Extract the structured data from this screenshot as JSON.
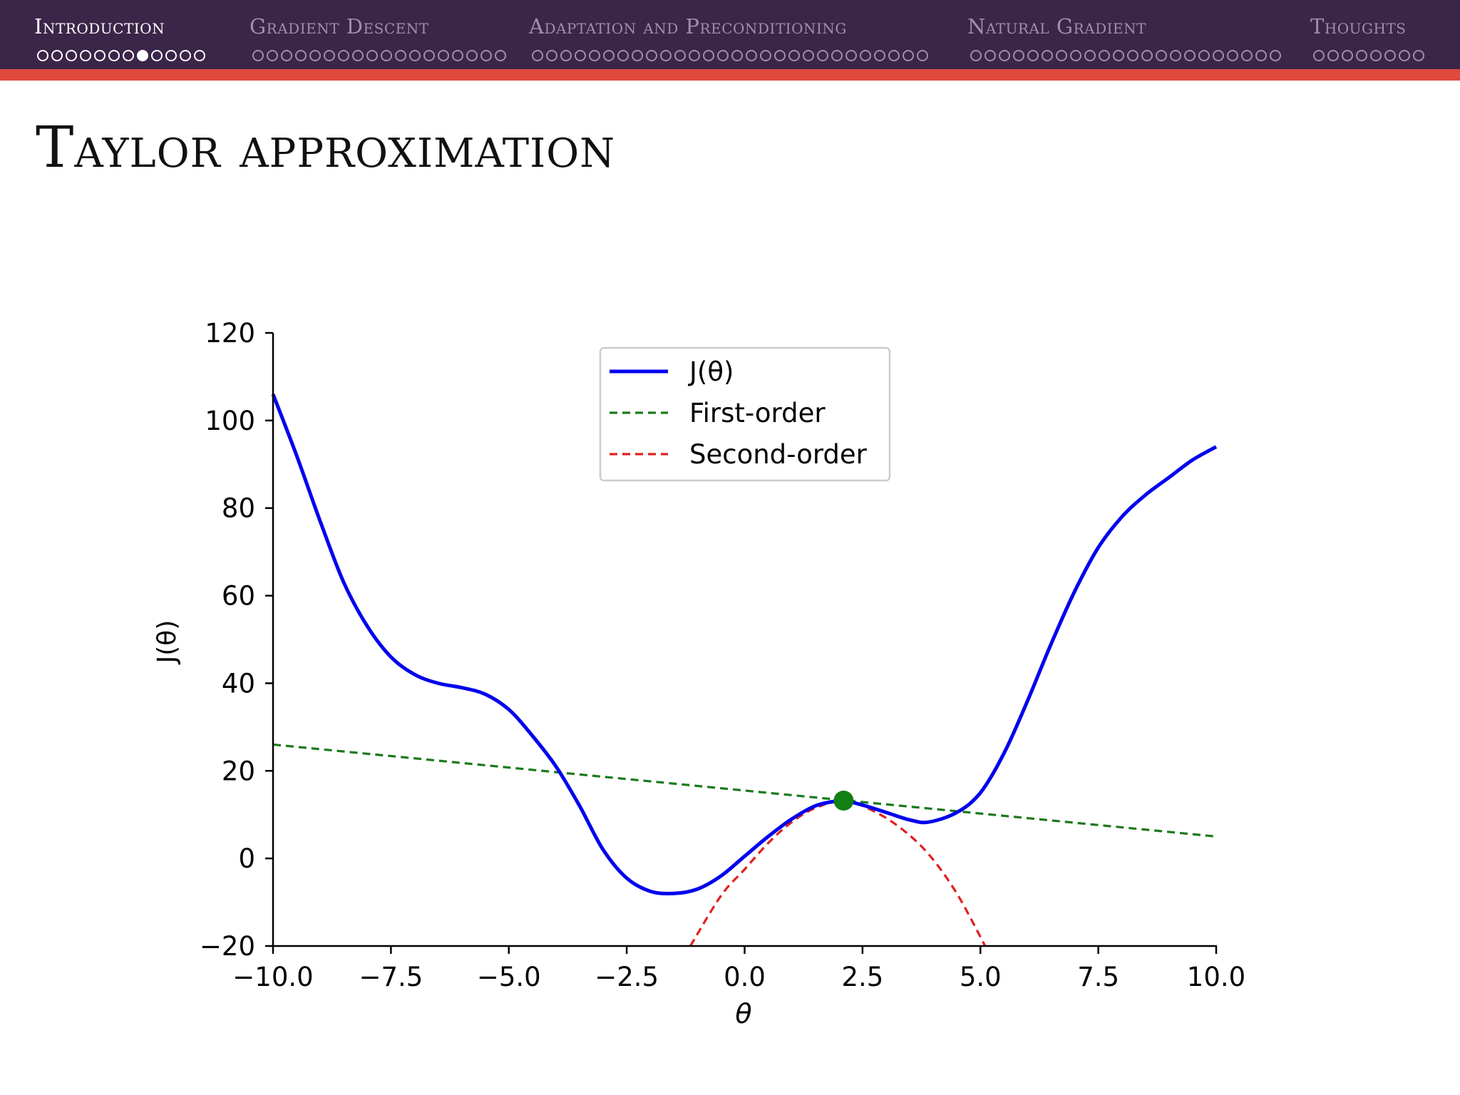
{
  "header": {
    "sections": [
      {
        "label": "Introduction",
        "dots": 12,
        "current": 7,
        "active": true
      },
      {
        "label": "Gradient Descent",
        "dots": 18,
        "current": -1,
        "active": false
      },
      {
        "label": "Adaptation and Preconditioning",
        "dots": 28,
        "current": -1,
        "active": false
      },
      {
        "label": "Natural Gradient",
        "dots": 22,
        "current": -1,
        "active": false
      },
      {
        "label": "Thoughts",
        "dots": 8,
        "current": -1,
        "active": false
      }
    ]
  },
  "slide": {
    "title": "Taylor approximation"
  },
  "colors": {
    "header_bg": "#3b2549",
    "accent_bar": "#e2493d",
    "curve": "#0000ee",
    "first_order": "#1a7a1a",
    "second_order": "#e02020",
    "point": "#138013"
  },
  "chart_data": {
    "type": "line",
    "xlabel": "θ",
    "ylabel": "J(θ)",
    "xlim": [
      -10,
      10
    ],
    "ylim": [
      -20,
      120
    ],
    "xticks": [
      "−10.0",
      "−7.5",
      "−5.0",
      "−2.5",
      "0.0",
      "2.5",
      "5.0",
      "7.5",
      "10.0"
    ],
    "xtick_values": [
      -10,
      -7.5,
      -5,
      -2.5,
      0,
      2.5,
      5,
      7.5,
      10
    ],
    "yticks": [
      "−20",
      "0",
      "20",
      "40",
      "60",
      "80",
      "100",
      "120"
    ],
    "ytick_values": [
      -20,
      0,
      20,
      40,
      60,
      80,
      100,
      120
    ],
    "grid": false,
    "legend_position": "upper-center",
    "series": [
      {
        "name": "J(θ)",
        "style": "solid",
        "x": [
          -10,
          -9.5,
          -9,
          -8.5,
          -8,
          -7.5,
          -7,
          -6.5,
          -6,
          -5.5,
          -5,
          -4.5,
          -4,
          -3.5,
          -3,
          -2.5,
          -2,
          -1.5,
          -1,
          -0.5,
          0,
          0.5,
          1,
          1.5,
          2,
          2.1,
          2.5,
          3,
          3.5,
          3.9,
          4.5,
          5,
          5.5,
          6,
          6.5,
          7,
          7.5,
          8,
          8.5,
          9,
          9.5,
          10
        ],
        "y": [
          106,
          92,
          77,
          63,
          53,
          46,
          42,
          40,
          39,
          37.5,
          34,
          28,
          21,
          12,
          2,
          -4.5,
          -7.5,
          -8,
          -7,
          -4,
          0.5,
          5,
          9,
          12,
          13.2,
          13.2,
          12.2,
          10.5,
          8.8,
          8.3,
          10.5,
          15,
          24,
          36,
          49,
          61,
          71,
          78,
          83,
          87,
          91,
          94
        ]
      },
      {
        "name": "First-order",
        "style": "dashed",
        "x": [
          -10,
          10
        ],
        "y": [
          26,
          5
        ]
      },
      {
        "name": "Second-order",
        "style": "dashed",
        "x": [
          -1.15,
          -0.5,
          0,
          0.5,
          1,
          1.5,
          2.1,
          2.7,
          3.3,
          3.9,
          4.5,
          5.1
        ],
        "y": [
          -20,
          -8.5,
          -2.5,
          3.5,
          8.3,
          11.5,
          13.2,
          11,
          7,
          1,
          -8,
          -20
        ]
      }
    ],
    "marker": {
      "x": 2.1,
      "y": 13.2
    }
  }
}
